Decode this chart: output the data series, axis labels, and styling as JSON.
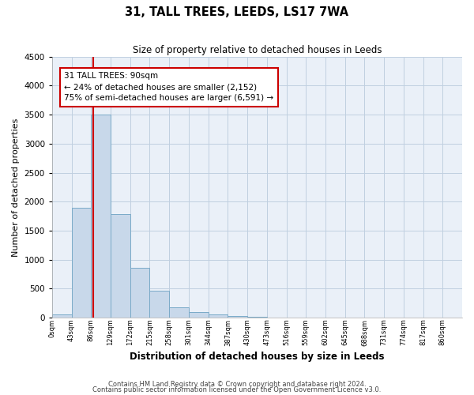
{
  "title": "31, TALL TREES, LEEDS, LS17 7WA",
  "subtitle": "Size of property relative to detached houses in Leeds",
  "xlabel": "Distribution of detached houses by size in Leeds",
  "ylabel": "Number of detached properties",
  "bar_labels": [
    "0sqm",
    "43sqm",
    "86sqm",
    "129sqm",
    "172sqm",
    "215sqm",
    "258sqm",
    "301sqm",
    "344sqm",
    "387sqm",
    "430sqm",
    "473sqm",
    "516sqm",
    "559sqm",
    "602sqm",
    "645sqm",
    "688sqm",
    "731sqm",
    "774sqm",
    "817sqm",
    "860sqm"
  ],
  "bar_heights": [
    50,
    1900,
    3500,
    1780,
    860,
    460,
    175,
    95,
    50,
    30,
    10,
    5,
    0,
    0,
    0,
    0,
    0,
    0,
    0,
    0,
    0
  ],
  "bar_color": "#c8d8ea",
  "bar_edge_color": "#7aaac8",
  "bar_edge_width": 0.7,
  "property_line_x": 90,
  "property_line_color": "#cc0000",
  "ylim": [
    0,
    4500
  ],
  "yticks": [
    0,
    500,
    1000,
    1500,
    2000,
    2500,
    3000,
    3500,
    4000,
    4500
  ],
  "annotation_title": "31 TALL TREES: 90sqm",
  "annotation_line1": "← 24% of detached houses are smaller (2,152)",
  "annotation_line2": "75% of semi-detached houses are larger (6,591) →",
  "annotation_box_color": "#cc0000",
  "bin_width": 43,
  "footnote1": "Contains HM Land Registry data © Crown copyright and database right 2024.",
  "footnote2": "Contains public sector information licensed under the Open Government Licence v3.0.",
  "grid_color": "#c0cfe0",
  "background_color": "#eaf0f8"
}
